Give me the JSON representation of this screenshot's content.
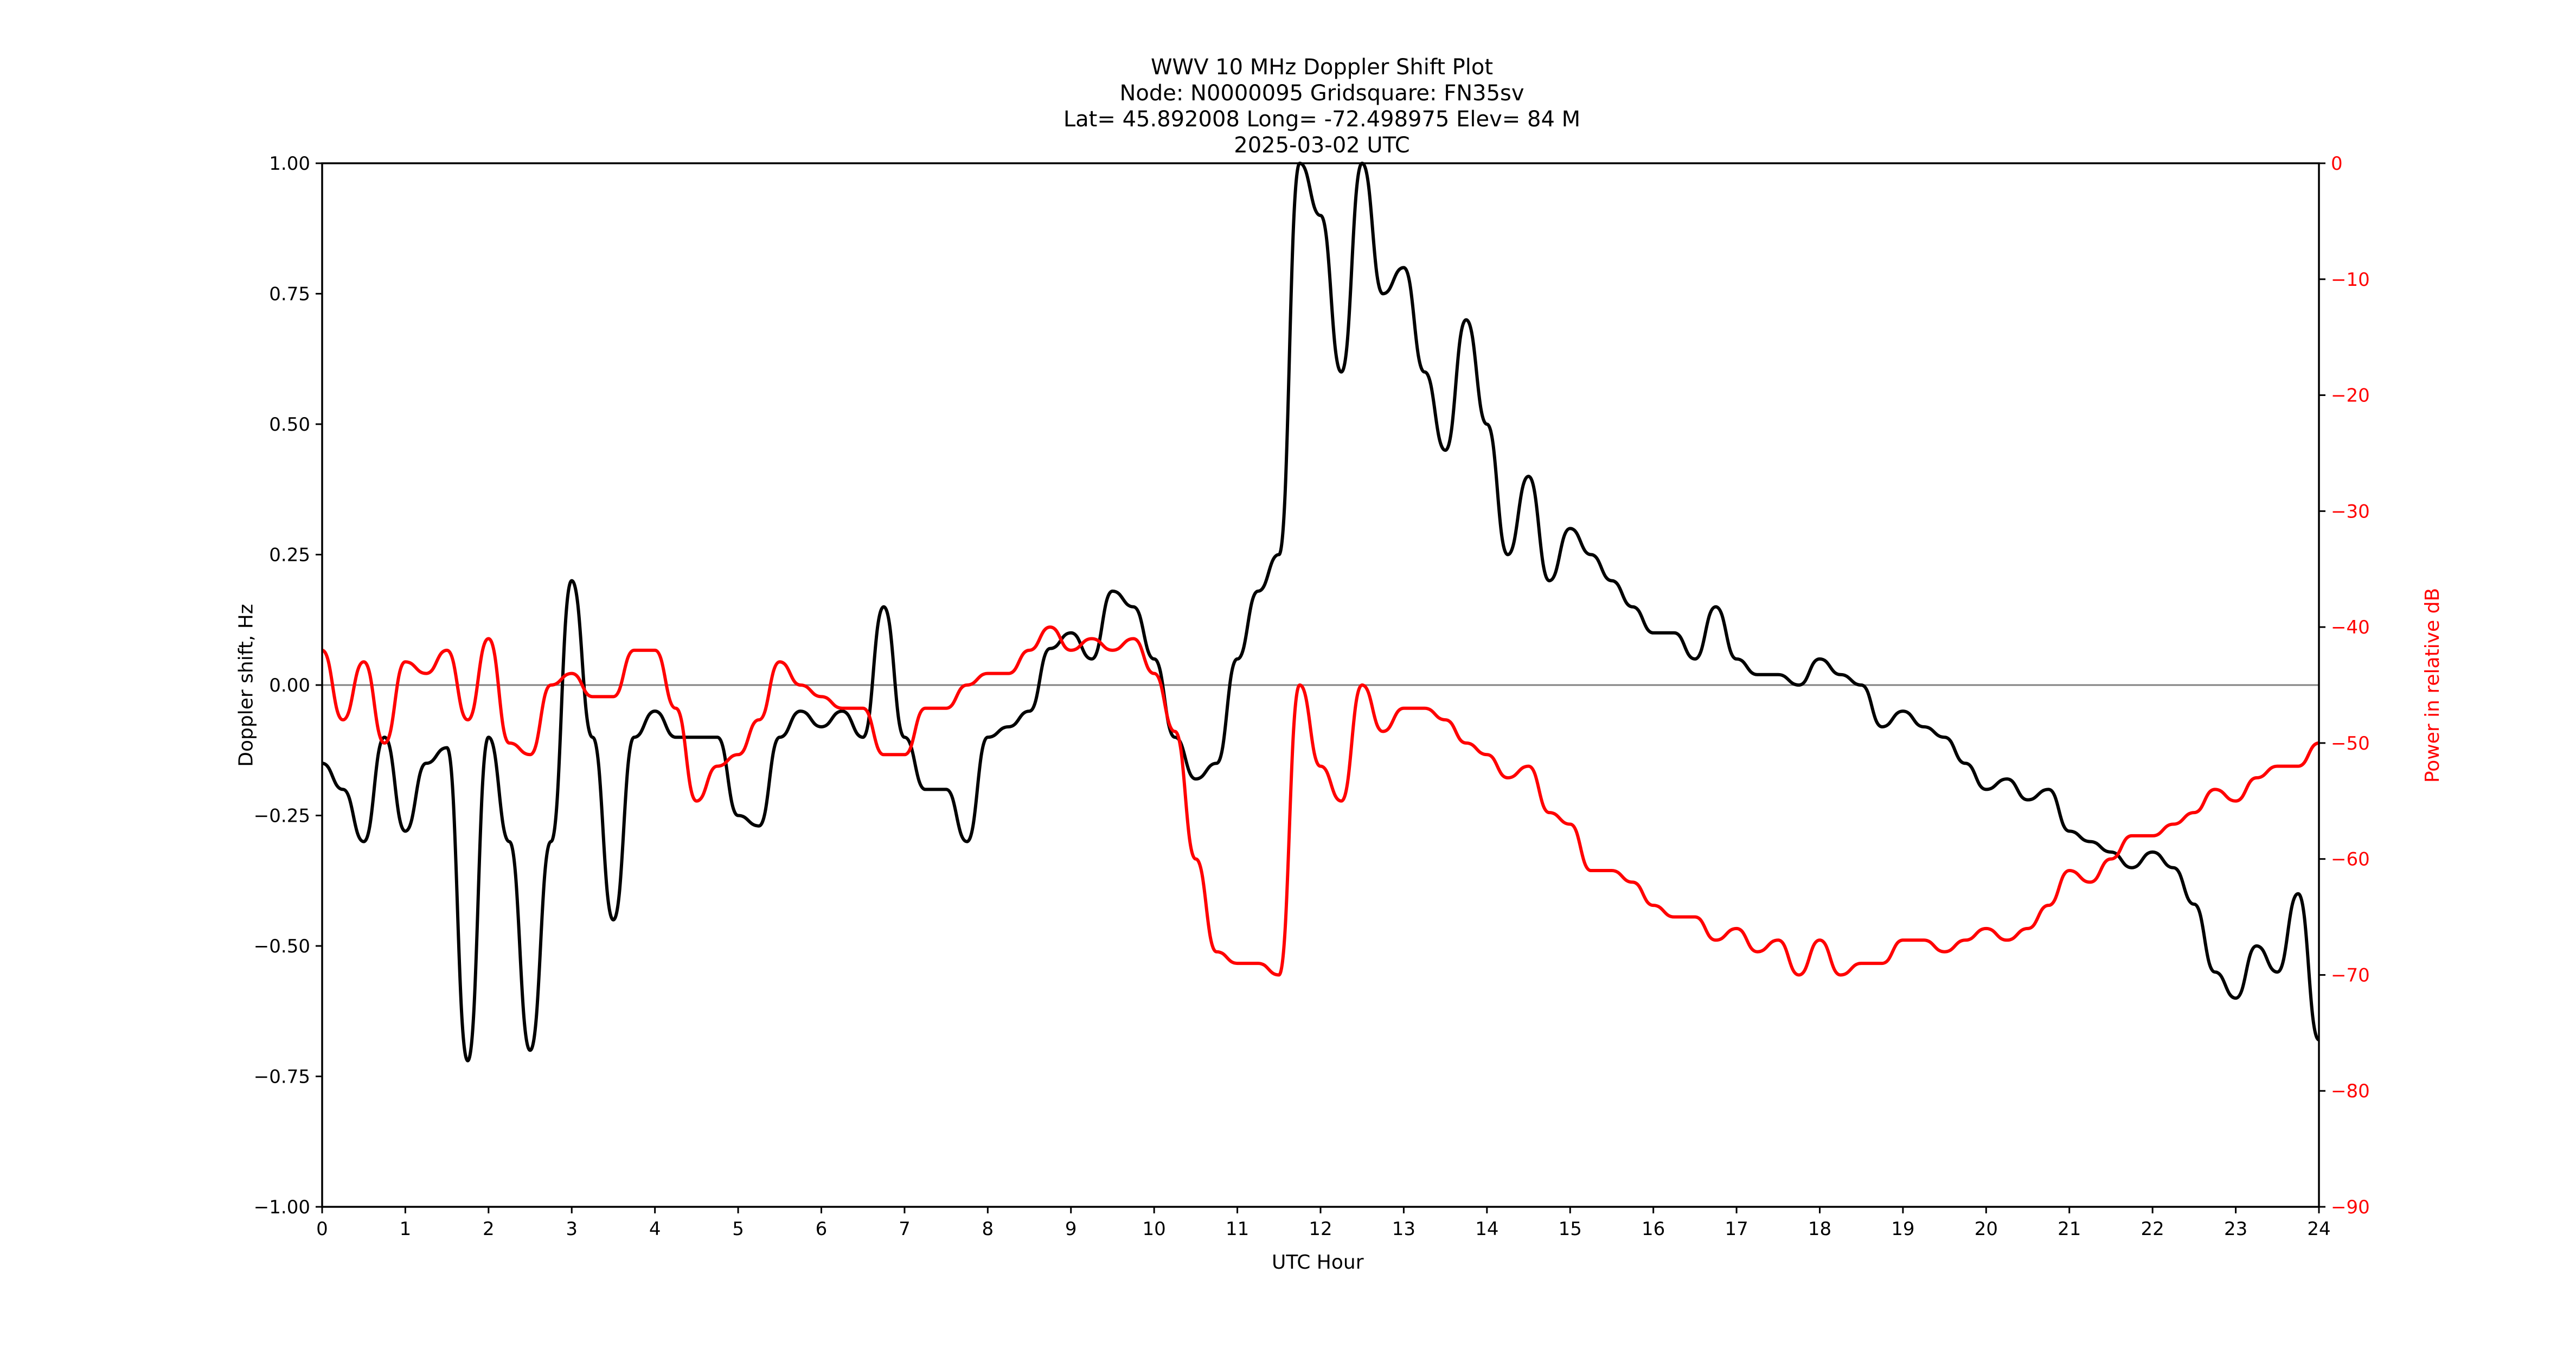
{
  "figure": {
    "title_lines": [
      "WWV 10 MHz Doppler Shift Plot",
      "Node:  N0000095     Gridsquare:  FN35sv",
      "Lat= 45.892008    Long= -72.498975    Elev= 84 M",
      "2025-03-02  UTC"
    ],
    "xlabel": "UTC Hour",
    "ylabel_left": "Doppler shift, Hz",
    "ylabel_right": "Power in relative dB",
    "colors": {
      "doppler": "#000000",
      "power": "#ff0000",
      "zero_line": "#808080",
      "right_axis_ticks": "#ff0000"
    }
  },
  "chart_data": {
    "type": "line",
    "title": "WWV 10 MHz Doppler Shift Plot",
    "subtitle": "Node:  N0000095     Gridsquare:  FN35sv | Lat= 45.892008    Long= -72.498975    Elev= 84 M | 2025-03-02  UTC",
    "xlabel": "UTC Hour",
    "ylabel": "Doppler shift, Hz",
    "y2label": "Power in relative dB",
    "xlim": [
      0,
      24
    ],
    "ylim": [
      -1.0,
      1.0
    ],
    "y2lim": [
      -90,
      0
    ],
    "xticks": [
      "0",
      "1",
      "2",
      "3",
      "4",
      "5",
      "6",
      "7",
      "8",
      "9",
      "10",
      "11",
      "12",
      "13",
      "14",
      "15",
      "16",
      "17",
      "18",
      "19",
      "20",
      "21",
      "22",
      "23",
      "24"
    ],
    "yticks": [
      "1.00",
      "0.75",
      "0.50",
      "0.25",
      "0.00",
      "−0.25",
      "−0.50",
      "−0.75",
      "−1.00"
    ],
    "y2ticks": [
      "0",
      "−10",
      "−20",
      "−30",
      "−40",
      "−50",
      "−60",
      "−70",
      "−80",
      "−90"
    ],
    "grid": false,
    "legend": null,
    "reference_line": {
      "y": 0.0,
      "color": "#808080"
    },
    "x": [
      0,
      0.25,
      0.5,
      0.75,
      1,
      1.25,
      1.5,
      1.75,
      2,
      2.25,
      2.5,
      2.75,
      3,
      3.25,
      3.5,
      3.75,
      4,
      4.25,
      4.5,
      4.75,
      5,
      5.25,
      5.5,
      5.75,
      6,
      6.25,
      6.5,
      6.75,
      7,
      7.25,
      7.5,
      7.75,
      8,
      8.25,
      8.5,
      8.75,
      9,
      9.25,
      9.5,
      9.75,
      10,
      10.25,
      10.5,
      10.75,
      11,
      11.25,
      11.5,
      11.75,
      12,
      12.25,
      12.5,
      12.75,
      13,
      13.25,
      13.5,
      13.75,
      14,
      14.25,
      14.5,
      14.75,
      15,
      15.25,
      15.5,
      15.75,
      16,
      16.25,
      16.5,
      16.75,
      17,
      17.25,
      17.5,
      17.75,
      18,
      18.25,
      18.5,
      18.75,
      19,
      19.25,
      19.5,
      19.75,
      20,
      20.25,
      20.5,
      20.75,
      21,
      21.25,
      21.5,
      21.75,
      22,
      22.25,
      22.5,
      22.75,
      23,
      23.25,
      23.5,
      23.75,
      24
    ],
    "series": [
      {
        "name": "Doppler shift, Hz",
        "axis": "left",
        "color": "#000000",
        "values": [
          -0.15,
          -0.2,
          -0.3,
          -0.1,
          -0.28,
          -0.15,
          -0.12,
          -0.72,
          -0.1,
          -0.3,
          -0.7,
          -0.3,
          0.2,
          -0.1,
          -0.45,
          -0.1,
          -0.05,
          -0.1,
          -0.1,
          -0.1,
          -0.25,
          -0.27,
          -0.1,
          -0.05,
          -0.08,
          -0.05,
          -0.1,
          0.15,
          -0.1,
          -0.2,
          -0.2,
          -0.3,
          -0.1,
          -0.08,
          -0.05,
          0.07,
          0.1,
          0.05,
          0.18,
          0.15,
          0.05,
          -0.1,
          -0.18,
          -0.15,
          0.05,
          0.18,
          0.25,
          1.0,
          0.9,
          0.6,
          1.0,
          0.75,
          0.8,
          0.6,
          0.45,
          0.7,
          0.5,
          0.25,
          0.4,
          0.2,
          0.3,
          0.25,
          0.2,
          0.15,
          0.1,
          0.1,
          0.05,
          0.15,
          0.05,
          0.02,
          0.02,
          0.0,
          0.05,
          0.02,
          0.0,
          -0.08,
          -0.05,
          -0.08,
          -0.1,
          -0.15,
          -0.2,
          -0.18,
          -0.22,
          -0.2,
          -0.28,
          -0.3,
          -0.32,
          -0.35,
          -0.32,
          -0.35,
          -0.42,
          -0.55,
          -0.6,
          -0.5,
          -0.55,
          -0.4,
          -0.68
        ]
      },
      {
        "name": "Power in relative dB",
        "axis": "right",
        "color": "#ff0000",
        "values": [
          -42,
          -48,
          -43,
          -50,
          -43,
          -44,
          -42,
          -48,
          -41,
          -50,
          -51,
          -45,
          -44,
          -46,
          -46,
          -42,
          -42,
          -47,
          -55,
          -52,
          -51,
          -48,
          -43,
          -45,
          -46,
          -47,
          -47,
          -51,
          -51,
          -47,
          -47,
          -45,
          -44,
          -44,
          -42,
          -40,
          -42,
          -41,
          -42,
          -41,
          -44,
          -49,
          -60,
          -68,
          -69,
          -69,
          -70,
          -45,
          -52,
          -55,
          -45,
          -49,
          -47,
          -47,
          -48,
          -50,
          -51,
          -53,
          -52,
          -56,
          -57,
          -61,
          -61,
          -62,
          -64,
          -65,
          -65,
          -67,
          -66,
          -68,
          -67,
          -70,
          -67,
          -70,
          -69,
          -69,
          -67,
          -67,
          -68,
          -67,
          -66,
          -67,
          -66,
          -64,
          -61,
          -62,
          -60,
          -58,
          -58,
          -57,
          -56,
          -54,
          -55,
          -53,
          -52,
          -52,
          -50
        ]
      }
    ]
  }
}
